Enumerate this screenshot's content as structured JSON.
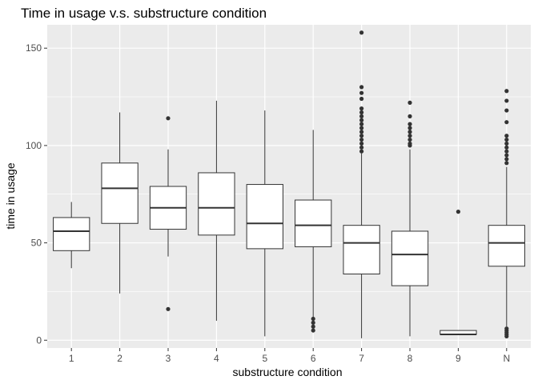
{
  "chart_data": {
    "type": "boxplot",
    "title": "Time in usage v.s. substructure condition",
    "xlabel": "substructure condition",
    "ylabel": "time in usage",
    "categories": [
      "1",
      "2",
      "3",
      "4",
      "5",
      "6",
      "7",
      "8",
      "9",
      "N"
    ],
    "ylim": [
      -4,
      162
    ],
    "yticks": [
      0,
      50,
      100,
      150
    ],
    "grid": true,
    "boxes": [
      {
        "category": "1",
        "whisker_low": 37,
        "q1": 46,
        "median": 56,
        "q3": 63,
        "whisker_high": 71,
        "outliers": []
      },
      {
        "category": "2",
        "whisker_low": 24,
        "q1": 60,
        "median": 78,
        "q3": 91,
        "whisker_high": 117,
        "outliers": []
      },
      {
        "category": "3",
        "whisker_low": 43,
        "q1": 57,
        "median": 68,
        "q3": 79,
        "whisker_high": 98,
        "outliers": [
          16,
          114
        ]
      },
      {
        "category": "4",
        "whisker_low": 10,
        "q1": 54,
        "median": 68,
        "q3": 86,
        "whisker_high": 123,
        "outliers": []
      },
      {
        "category": "5",
        "whisker_low": 2,
        "q1": 47,
        "median": 60,
        "q3": 80,
        "whisker_high": 118,
        "outliers": []
      },
      {
        "category": "6",
        "whisker_low": 12,
        "q1": 48,
        "median": 59,
        "q3": 72,
        "whisker_high": 108,
        "outliers": [
          5,
          7,
          9,
          11
        ]
      },
      {
        "category": "7",
        "whisker_low": 1,
        "q1": 34,
        "median": 50,
        "q3": 59,
        "whisker_high": 96,
        "outliers": [
          97,
          99,
          101,
          103,
          105,
          107,
          109,
          111,
          113,
          115,
          117,
          119,
          124,
          127,
          130,
          158
        ]
      },
      {
        "category": "8",
        "whisker_low": 2,
        "q1": 28,
        "median": 44,
        "q3": 56,
        "whisker_high": 98,
        "outliers": [
          100,
          101,
          103,
          105,
          107,
          109,
          111,
          115,
          122
        ]
      },
      {
        "category": "9",
        "whisker_low": 3,
        "q1": 3,
        "median": 3,
        "q3": 5,
        "whisker_high": 5,
        "outliers": [
          66
        ]
      },
      {
        "category": "N",
        "whisker_low": 7,
        "q1": 38,
        "median": 50,
        "q3": 59,
        "whisker_high": 89,
        "outliers": [
          2,
          3,
          4,
          5,
          6,
          91,
          93,
          95,
          97,
          99,
          101,
          103,
          105,
          112,
          118,
          123,
          128
        ]
      }
    ],
    "colors": {
      "panel_background": "#ebebeb",
      "grid": "#ffffff",
      "box_fill": "#ffffff",
      "box_line": "#333333",
      "outlier": "#333333",
      "tick_text": "#4d4d4d"
    }
  }
}
